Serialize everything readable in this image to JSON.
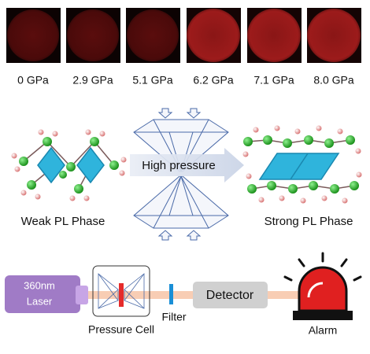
{
  "samples": [
    {
      "label": "0 GPa"
    },
    {
      "label": "2.9 GPa"
    },
    {
      "label": "5.1 GPa"
    },
    {
      "label": "6.2 GPa"
    },
    {
      "label": "7.1 GPa"
    },
    {
      "label": "8.0 GPa"
    }
  ],
  "transition": {
    "left_label": "Weak PL Phase",
    "arrow_label": "High pressure",
    "right_label": "Strong PL Phase"
  },
  "setup": {
    "laser_line1": "360nm",
    "laser_line2": "Laser",
    "cell": "Pressure Cell",
    "filter": "Filter",
    "detector": "Detector",
    "alarm": "Alarm"
  }
}
